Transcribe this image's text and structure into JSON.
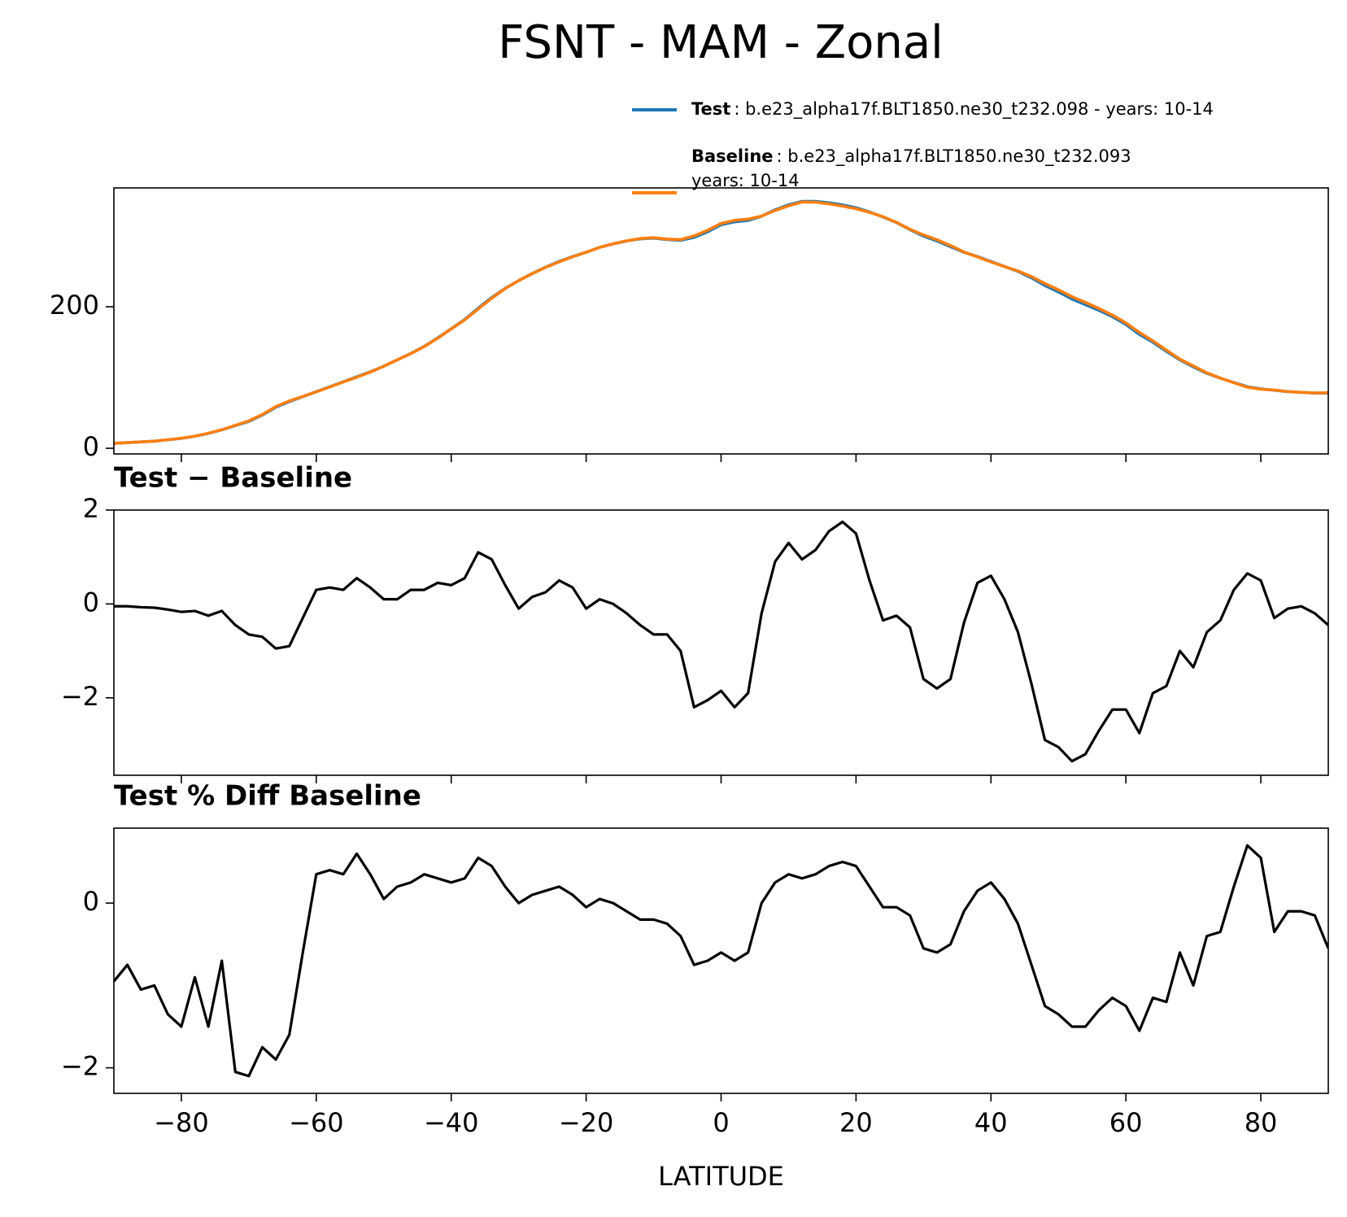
{
  "title": "FSNT - MAM - Zonal",
  "chart_data": [
    {
      "type": "line",
      "legend": "above",
      "x": [
        -90,
        -88,
        -86,
        -84,
        -82,
        -80,
        -78,
        -76,
        -74,
        -72,
        -70,
        -68,
        -66,
        -64,
        -62,
        -60,
        -58,
        -56,
        -54,
        -52,
        -50,
        -48,
        -46,
        -44,
        -42,
        -40,
        -38,
        -36,
        -34,
        -32,
        -30,
        -28,
        -26,
        -24,
        -22,
        -20,
        -18,
        -16,
        -14,
        -12,
        -10,
        -8,
        -6,
        -4,
        -2,
        0,
        2,
        4,
        6,
        8,
        10,
        12,
        14,
        16,
        18,
        20,
        22,
        24,
        26,
        28,
        30,
        32,
        34,
        36,
        38,
        40,
        42,
        44,
        46,
        48,
        50,
        52,
        54,
        56,
        58,
        60,
        62,
        64,
        66,
        68,
        70,
        72,
        74,
        76,
        78,
        80,
        82,
        84,
        86,
        88,
        90
      ],
      "xlim": [
        -90,
        90
      ],
      "xticks": [
        {
          "value": -80,
          "label": "−80"
        },
        {
          "value": -60,
          "label": "−60"
        },
        {
          "value": -40,
          "label": "−40"
        },
        {
          "value": -20,
          "label": "−20"
        },
        0,
        20,
        40,
        60,
        80
      ],
      "xticklabels": false,
      "ylim": [
        -8,
        368
      ],
      "yticks": [
        0,
        200
      ],
      "series": [
        {
          "name": "Test",
          "description": [
            ": b.e23_alpha17f.BLT1850.ne30_t232.098 - years: 10-14"
          ],
          "color": "#1f77b4",
          "values": [
            7,
            8,
            9,
            10,
            12,
            14,
            17,
            21,
            26,
            32,
            38,
            47,
            58,
            66,
            73,
            80,
            87,
            94,
            101,
            108,
            116,
            125,
            134,
            144,
            156,
            169,
            182,
            198,
            213,
            226,
            237,
            247,
            256,
            264,
            271,
            277,
            284,
            289,
            293,
            296,
            297,
            295,
            294,
            298,
            306,
            316,
            320,
            322,
            328,
            337,
            344,
            349,
            349,
            347,
            344,
            340,
            334,
            327,
            319,
            309,
            300,
            293,
            285,
            277,
            271,
            264,
            257,
            250,
            241,
            230,
            221,
            211,
            203,
            195,
            186,
            175,
            161,
            150,
            137,
            125,
            115,
            106,
            99,
            93,
            87,
            84,
            82,
            80,
            79,
            78,
            78
          ]
        },
        {
          "name": "Baseline",
          "description": [
            ": b.e23_alpha17f.BLT1850.ne30_t232.093",
            "years: 10-14"
          ],
          "color": "#ff7f0e",
          "values": [
            7.05,
            8.05,
            9.07,
            10.08,
            12.12,
            14.17,
            17.15,
            21.25,
            26.15,
            32.45,
            38.65,
            47.7,
            58.95,
            66.9,
            73.3,
            79.7,
            86.65,
            93.7,
            100.45,
            107.65,
            115.9,
            124.9,
            133.7,
            143.7,
            155.55,
            168.6,
            181.45,
            196.9,
            212.05,
            225.6,
            237.1,
            246.85,
            255.75,
            263.5,
            270.65,
            277.1,
            283.9,
            289,
            293.2,
            296.45,
            297.65,
            295.65,
            295,
            300.2,
            308.05,
            317.85,
            322.2,
            323.9,
            328.2,
            336.1,
            342.7,
            348.05,
            347.85,
            345.45,
            342.25,
            338.5,
            333.5,
            327.35,
            319.25,
            309.5,
            301.6,
            294.8,
            286.6,
            277.4,
            270.55,
            263.4,
            256.9,
            250.6,
            242.7,
            232.9,
            224.05,
            214.35,
            206.2,
            197.7,
            188.25,
            177.25,
            163.75,
            151.9,
            138.75,
            126,
            116.35,
            106.6,
            99.35,
            92.7,
            86.35,
            83.5,
            82.3,
            80.1,
            79.05,
            78.2,
            78.45
          ]
        }
      ]
    },
    {
      "type": "line",
      "title": "Test − Baseline",
      "x": [
        -90,
        -88,
        -86,
        -84,
        -82,
        -80,
        -78,
        -76,
        -74,
        -72,
        -70,
        -68,
        -66,
        -64,
        -62,
        -60,
        -58,
        -56,
        -54,
        -52,
        -50,
        -48,
        -46,
        -44,
        -42,
        -40,
        -38,
        -36,
        -34,
        -32,
        -30,
        -28,
        -26,
        -24,
        -22,
        -20,
        -18,
        -16,
        -14,
        -12,
        -10,
        -8,
        -6,
        -4,
        -2,
        0,
        2,
        4,
        6,
        8,
        10,
        12,
        14,
        16,
        18,
        20,
        22,
        24,
        26,
        28,
        30,
        32,
        34,
        36,
        38,
        40,
        42,
        44,
        46,
        48,
        50,
        52,
        54,
        56,
        58,
        60,
        62,
        64,
        66,
        68,
        70,
        72,
        74,
        76,
        78,
        80,
        82,
        84,
        86,
        88,
        90
      ],
      "xlim": [
        -90,
        90
      ],
      "xticks": [
        {
          "value": -80,
          "label": "−80"
        },
        {
          "value": -60,
          "label": "−60"
        },
        {
          "value": -40,
          "label": "−40"
        },
        {
          "value": -20,
          "label": "−20"
        },
        0,
        20,
        40,
        60,
        80
      ],
      "xticklabels": false,
      "ylim": [
        -3.65,
        2.0
      ],
      "yticks": [
        {
          "value": -2,
          "label": "−2"
        },
        0,
        2
      ],
      "series": [
        {
          "color": "#000000",
          "values": [
            -0.05,
            -0.05,
            -0.07,
            -0.08,
            -0.12,
            -0.17,
            -0.15,
            -0.25,
            -0.15,
            -0.45,
            -0.65,
            -0.7,
            -0.95,
            -0.9,
            -0.3,
            0.3,
            0.35,
            0.3,
            0.55,
            0.35,
            0.1,
            0.1,
            0.3,
            0.3,
            0.45,
            0.4,
            0.55,
            1.1,
            0.95,
            0.4,
            -0.1,
            0.15,
            0.25,
            0.5,
            0.35,
            -0.1,
            0.1,
            0.0,
            -0.2,
            -0.45,
            -0.65,
            -0.65,
            -1.0,
            -2.2,
            -2.05,
            -1.85,
            -2.2,
            -1.9,
            -0.2,
            0.9,
            1.3,
            0.95,
            1.15,
            1.55,
            1.75,
            1.5,
            0.5,
            -0.35,
            -0.25,
            -0.5,
            -1.6,
            -1.8,
            -1.6,
            -0.4,
            0.45,
            0.6,
            0.1,
            -0.6,
            -1.7,
            -2.9,
            -3.05,
            -3.35,
            -3.2,
            -2.7,
            -2.25,
            -2.25,
            -2.75,
            -1.9,
            -1.75,
            -1.0,
            -1.35,
            -0.6,
            -0.35,
            0.3,
            0.65,
            0.5,
            -0.3,
            -0.1,
            -0.05,
            -0.2,
            -0.45
          ]
        }
      ]
    },
    {
      "type": "line",
      "title": "Test % Diff Baseline",
      "xlabel": "LATITUDE",
      "x": [
        -90,
        -88,
        -86,
        -84,
        -82,
        -80,
        -78,
        -76,
        -74,
        -72,
        -70,
        -68,
        -66,
        -64,
        -62,
        -60,
        -58,
        -56,
        -54,
        -52,
        -50,
        -48,
        -46,
        -44,
        -42,
        -40,
        -38,
        -36,
        -34,
        -32,
        -30,
        -28,
        -26,
        -24,
        -22,
        -20,
        -18,
        -16,
        -14,
        -12,
        -10,
        -8,
        -6,
        -4,
        -2,
        0,
        2,
        4,
        6,
        8,
        10,
        12,
        14,
        16,
        18,
        20,
        22,
        24,
        26,
        28,
        30,
        32,
        34,
        36,
        38,
        40,
        42,
        44,
        46,
        48,
        50,
        52,
        54,
        56,
        58,
        60,
        62,
        64,
        66,
        68,
        70,
        72,
        74,
        76,
        78,
        80,
        82,
        84,
        86,
        88,
        90
      ],
      "xlim": [
        -90,
        90
      ],
      "xticks": [
        {
          "value": -80,
          "label": "−80"
        },
        {
          "value": -60,
          "label": "−60"
        },
        {
          "value": -40,
          "label": "−40"
        },
        {
          "value": -20,
          "label": "−20"
        },
        0,
        20,
        40,
        60,
        80
      ],
      "xticklabels": true,
      "ylim": [
        -2.31,
        0.91
      ],
      "yticks": [
        {
          "value": -2,
          "label": "−2"
        },
        0
      ],
      "series": [
        {
          "color": "#000000",
          "values": [
            -0.95,
            -0.75,
            -1.05,
            -1.0,
            -1.35,
            -1.5,
            -0.9,
            -1.5,
            -0.7,
            -2.05,
            -2.1,
            -1.75,
            -1.9,
            -1.6,
            -0.6,
            0.35,
            0.4,
            0.35,
            0.6,
            0.35,
            0.05,
            0.2,
            0.25,
            0.35,
            0.3,
            0.25,
            0.3,
            0.55,
            0.45,
            0.2,
            0.0,
            0.1,
            0.15,
            0.2,
            0.1,
            -0.05,
            0.05,
            0.0,
            -0.1,
            -0.2,
            -0.2,
            -0.25,
            -0.4,
            -0.75,
            -0.7,
            -0.6,
            -0.7,
            -0.6,
            0.0,
            0.25,
            0.35,
            0.3,
            0.35,
            0.45,
            0.5,
            0.45,
            0.2,
            -0.05,
            -0.05,
            -0.15,
            -0.55,
            -0.6,
            -0.5,
            -0.1,
            0.15,
            0.25,
            0.05,
            -0.25,
            -0.75,
            -1.25,
            -1.35,
            -1.5,
            -1.5,
            -1.3,
            -1.15,
            -1.25,
            -1.55,
            -1.15,
            -1.2,
            -0.6,
            -1.0,
            -0.4,
            -0.35,
            0.2,
            0.7,
            0.55,
            -0.35,
            -0.1,
            -0.1,
            -0.15,
            -0.55
          ]
        }
      ]
    }
  ]
}
